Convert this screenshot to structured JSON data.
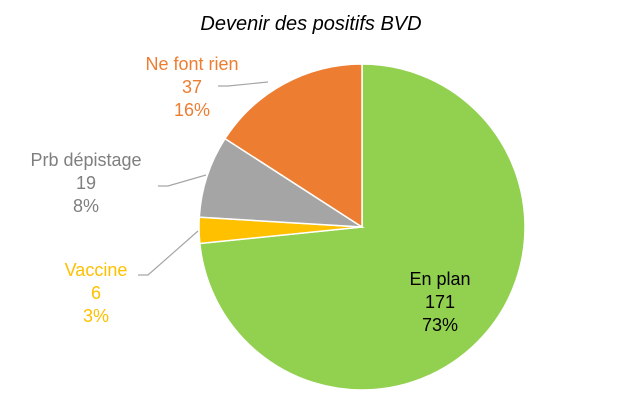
{
  "chart_data": {
    "type": "pie",
    "title": "Devenir des positifs BVD",
    "start_angle_deg": 0,
    "direction": "clockwise",
    "slices": [
      {
        "label": "En plan",
        "value": 171,
        "percent": "73%",
        "color": "#92D050",
        "label_color": "#000000",
        "label_placement": "inside"
      },
      {
        "label": "Vaccine",
        "value": 6,
        "percent": "3%",
        "color": "#FFC000",
        "label_color": "#FFC000",
        "label_placement": "outside-left"
      },
      {
        "label": "Prb dépistage",
        "value": 19,
        "percent": "8%",
        "color": "#A5A5A5",
        "label_color": "#7F7F7F",
        "label_placement": "outside-left"
      },
      {
        "label": "Ne font rien",
        "value": 37,
        "percent": "16%",
        "color": "#ED7D31",
        "label_color": "#ED7D31",
        "label_placement": "outside-left"
      }
    ],
    "leader_line_color": "#A6A6A6",
    "legend": "none"
  }
}
